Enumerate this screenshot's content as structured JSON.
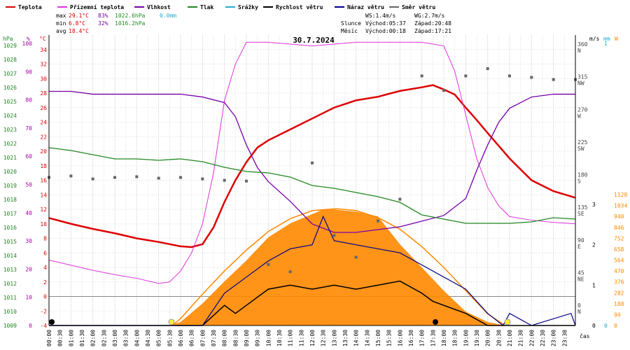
{
  "legend": [
    {
      "name": "Teplota",
      "color": "#dd0000"
    },
    {
      "name": "Přízemní teplota",
      "color": "#dd33dd"
    },
    {
      "name": "Vlhkost",
      "color": "#7700aa"
    },
    {
      "name": "Tlak",
      "color": "#228822"
    },
    {
      "name": "Srážky",
      "color": "#22aacc"
    },
    {
      "name": "Rychlost větru",
      "color": "#000000"
    },
    {
      "name": "Náraz větru",
      "color": "#000088"
    },
    {
      "name": "Směr větru",
      "color": "#666666"
    }
  ],
  "stats": {
    "max_label": "max",
    "max_temp": "29.1°C",
    "max_hum": "83%",
    "max_press": "1022.6hPa",
    "rain": "0.0mm",
    "min_label": "min",
    "min_temp": "6.8°C",
    "min_hum": "32%",
    "min_press": "1016.2hPa",
    "avg_label": "avg",
    "avg_temp": "18.4°C"
  },
  "wind_info": {
    "ws": "WS:1.4m/s",
    "wg": "WG:2.7m/s",
    "sun_label": "Slunce",
    "sunrise": "Východ:05:37",
    "sunset": "Západ:20:48",
    "moon_label": "Měsíc",
    "moonrise": "Východ:00:18",
    "moonset": "Západ:17:21"
  },
  "date": "30.7.2024",
  "axis_units": {
    "hpa": "hPa",
    "pct": "%",
    "temp": "°C",
    "ms": "m/s",
    "mm": "mm",
    "wm2": "W",
    "time": "čas"
  },
  "chart_data": {
    "type": "line",
    "date": "30.7.2024",
    "x_ticks": [
      "00:00",
      "00:30",
      "01:00",
      "01:30",
      "02:00",
      "02:30",
      "03:00",
      "03:30",
      "04:00",
      "04:30",
      "05:00",
      "05:30",
      "06:00",
      "06:30",
      "07:00",
      "07:30",
      "08:00",
      "08:30",
      "09:00",
      "09:30",
      "10:00",
      "10:30",
      "11:00",
      "11:30",
      "12:00",
      "12:30",
      "13:00",
      "13:30",
      "14:00",
      "14:30",
      "15:00",
      "15:30",
      "16:00",
      "16:30",
      "17:00",
      "17:30",
      "18:00",
      "18:30",
      "19:00",
      "19:30",
      "20:00",
      "20:30",
      "21:00",
      "21:30",
      "22:00",
      "22:30",
      "23:00",
      "23:30"
    ],
    "xlabel": "čas",
    "axes": {
      "pressure": {
        "unit": "hPa",
        "ticks": [
          1009,
          1010,
          1011,
          1012,
          1013,
          1014,
          1015,
          1016,
          1017,
          1018,
          1019,
          1020,
          1021,
          1022,
          1023,
          1024,
          1025,
          1026,
          1027,
          1028,
          1029
        ]
      },
      "humidity": {
        "unit": "%",
        "ticks": [
          0,
          10,
          20,
          30,
          40,
          50,
          60,
          70,
          80,
          90,
          100
        ]
      },
      "temperature": {
        "unit": "°C",
        "ticks": [
          -4,
          -2,
          0,
          2,
          4,
          6,
          8,
          10,
          12,
          14,
          16,
          18,
          20,
          22,
          24,
          26,
          28,
          30,
          32,
          34
        ]
      },
      "direction": {
        "ticks": [
          0,
          45,
          90,
          135,
          180,
          225,
          270,
          315,
          360
        ],
        "labels": [
          "N",
          "NE",
          "E",
          "SE",
          "S",
          "SW",
          "W",
          "NW",
          "N"
        ]
      },
      "wind_speed": {
        "unit": "m/s",
        "ticks": [
          0,
          1,
          2,
          3
        ]
      },
      "rain": {
        "unit": "mm",
        "ticks": [
          0,
          1
        ]
      },
      "radiation": {
        "unit": "W",
        "ticks": [
          0,
          94,
          188,
          282,
          376,
          470,
          564,
          658,
          752,
          846,
          940,
          1034,
          1128
        ]
      }
    },
    "series": [
      {
        "name": "Teplota",
        "axis": "temperature",
        "x": [
          0,
          1,
          2,
          3,
          4,
          5,
          5.5,
          6,
          6.5,
          7,
          7.5,
          8,
          8.5,
          9,
          9.5,
          10,
          11,
          12,
          13,
          14,
          15,
          16,
          17,
          17.5,
          18,
          18.5,
          19,
          19.5,
          20,
          21,
          22,
          23,
          24
        ],
        "y": [
          10.8,
          10,
          9.3,
          8.7,
          8,
          7.5,
          7.2,
          6.9,
          6.8,
          7.2,
          9.5,
          13,
          16,
          18.5,
          20.5,
          21.5,
          23,
          24.5,
          26,
          27,
          27.5,
          28.3,
          28.8,
          29.1,
          28.5,
          27.8,
          26,
          24.3,
          22.5,
          19,
          16,
          14.5,
          13.6
        ]
      },
      {
        "name": "Přízemní teplota",
        "axis": "temperature",
        "x": [
          0,
          1,
          2,
          3,
          4,
          5,
          5.5,
          6,
          6.5,
          7,
          7.5,
          8,
          8.5,
          9,
          10,
          12,
          14,
          16,
          17,
          18,
          18.5,
          19,
          19.5,
          20,
          20.5,
          21,
          22,
          23,
          24
        ],
        "y": [
          5,
          4.3,
          3.6,
          3,
          2.5,
          1.8,
          2,
          3.5,
          6,
          10,
          17,
          27,
          32,
          35,
          35,
          34.5,
          35,
          35,
          35,
          34.5,
          31,
          25,
          19,
          15,
          12.5,
          11,
          10.5,
          10.2,
          10
        ]
      },
      {
        "name": "Vlhkost",
        "axis": "humidity",
        "x": [
          0,
          1,
          2,
          3,
          4,
          5,
          6,
          7,
          8,
          8.5,
          9,
          9.5,
          10,
          11,
          12,
          13,
          14,
          15,
          16,
          17,
          18,
          19,
          19.5,
          20,
          20.5,
          21,
          22,
          23,
          24
        ],
        "y": [
          83,
          83,
          82,
          82,
          82,
          82,
          82,
          81,
          79,
          74,
          64,
          56,
          51,
          44,
          36,
          33,
          33,
          34,
          35,
          37,
          39,
          45,
          55,
          64,
          72,
          77,
          81,
          82,
          82
        ]
      },
      {
        "name": "Tlak",
        "axis": "pressure",
        "x": [
          0,
          1,
          2,
          3,
          4,
          5,
          6,
          7,
          8,
          9,
          10,
          11,
          12,
          13,
          14,
          15,
          16,
          17,
          18,
          19,
          20,
          21,
          22,
          23,
          24
        ],
        "y": [
          1021.7,
          1021.5,
          1021.2,
          1020.9,
          1020.9,
          1020.8,
          1020.9,
          1020.7,
          1020.3,
          1020,
          1019.9,
          1019.6,
          1019,
          1018.8,
          1018.5,
          1018.2,
          1017.8,
          1016.9,
          1016.6,
          1016.3,
          1016.3,
          1016.3,
          1016.4,
          1016.7,
          1016.6
        ]
      },
      {
        "name": "Srážky",
        "axis": "rain",
        "values": [
          0
        ]
      },
      {
        "name": "Rychlost větru",
        "axis": "wind_speed",
        "x": [
          0,
          6,
          7,
          8,
          8.5,
          9,
          10,
          11,
          12,
          13,
          14,
          15,
          16,
          17,
          17.5,
          18,
          19,
          20,
          21,
          24
        ],
        "y": [
          0,
          0,
          0,
          0.5,
          0.3,
          0.5,
          0.9,
          1,
          0.9,
          1,
          0.9,
          1,
          1.1,
          0.8,
          0.6,
          0.5,
          0.3,
          0,
          0,
          0
        ]
      },
      {
        "name": "Náraz větru",
        "axis": "wind_speed",
        "x": [
          0,
          6,
          7,
          8,
          9,
          10,
          11,
          12,
          12.5,
          13,
          14,
          15,
          16,
          17,
          18,
          19,
          20,
          20.7,
          21,
          22,
          23.8,
          24
        ],
        "y": [
          0,
          0,
          0,
          0.8,
          1.2,
          1.6,
          1.9,
          2,
          2.7,
          2.1,
          2,
          1.9,
          1.8,
          1.5,
          1.2,
          0.9,
          0.3,
          0,
          0.3,
          0,
          0.3,
          0
        ]
      },
      {
        "name": "Směr větru",
        "axis": "direction",
        "x": [
          0,
          1,
          2,
          3,
          4,
          5,
          6,
          7,
          8,
          9,
          10,
          11,
          12,
          13,
          14,
          15,
          16,
          17,
          18,
          19,
          20,
          21,
          22,
          23,
          24
        ],
        "y": [
          180,
          182,
          178,
          180,
          181,
          179,
          180,
          178,
          176,
          175,
          60,
          50,
          200,
          100,
          70,
          120,
          150,
          320,
          300,
          320,
          330,
          320,
          318,
          315,
          315
        ]
      }
    ],
    "solar_radiation": {
      "x": [
        5.5,
        6,
        7,
        8,
        9,
        10,
        11,
        12,
        12.5,
        13,
        14,
        15,
        16,
        17,
        18,
        19,
        20,
        20.8
      ],
      "y": [
        0,
        30,
        190,
        380,
        560,
        760,
        880,
        960,
        1000,
        1000,
        980,
        940,
        700,
        500,
        300,
        120,
        30,
        0
      ]
    },
    "solar_theoretical": {
      "x": [
        5.62,
        6,
        7,
        8,
        9,
        10,
        11,
        12,
        13,
        13.2,
        14,
        15,
        16,
        17,
        18,
        19,
        20,
        20.8
      ],
      "y": [
        0,
        60,
        270,
        470,
        650,
        810,
        920,
        990,
        1005,
        1005,
        990,
        930,
        830,
        680,
        500,
        300,
        100,
        0
      ]
    }
  }
}
